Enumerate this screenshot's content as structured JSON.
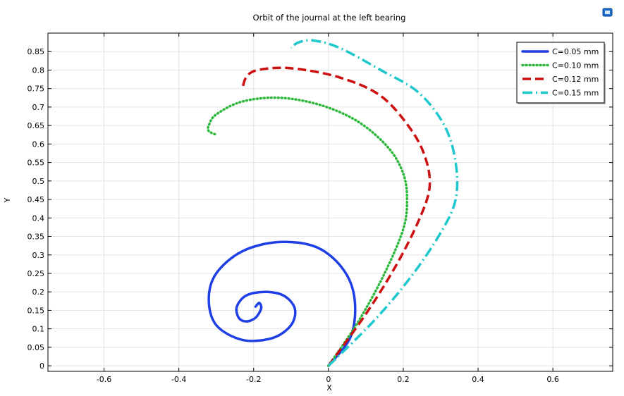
{
  "chart_data": {
    "type": "line",
    "title": "Orbit of the journal at the left bearing",
    "xlabel": "X",
    "ylabel": "Y",
    "xlim": [
      -0.75,
      0.76
    ],
    "ylim": [
      -0.015,
      0.9
    ],
    "xticks": [
      -0.6,
      -0.4,
      -0.2,
      0,
      0.2,
      0.4,
      0.6
    ],
    "xtick_labels": [
      "-0.6",
      "-0.4",
      "-0.2",
      "0",
      "0.2",
      "0.4",
      "0.6"
    ],
    "yticks": [
      0,
      0.05,
      0.1,
      0.15,
      0.2,
      0.25,
      0.3,
      0.35,
      0.4,
      0.45,
      0.5,
      0.55,
      0.6,
      0.65,
      0.7,
      0.75,
      0.8,
      0.85
    ],
    "ytick_labels": [
      "0",
      "0.05",
      "0.1",
      "0.15",
      "0.2",
      "0.25",
      "0.3",
      "0.35",
      "0.4",
      "0.45",
      "0.5",
      "0.55",
      "0.6",
      "0.65",
      "0.7",
      "0.75",
      "0.8",
      "0.85"
    ],
    "grid": true,
    "legend_position": "top-right",
    "series": [
      {
        "name": "C=0.05 mm",
        "color": "#1f3fe6",
        "dash": "solid",
        "x": [
          0,
          0.06,
          0.07,
          0.04,
          -0.03,
          -0.13,
          -0.23,
          -0.3,
          -0.32,
          -0.3,
          -0.23,
          -0.15,
          -0.1,
          -0.09,
          -0.12,
          -0.17,
          -0.22,
          -0.245,
          -0.24,
          -0.22,
          -0.195,
          -0.18,
          -0.185,
          -0.195
        ],
        "y": [
          0,
          0.08,
          0.18,
          0.26,
          0.32,
          0.335,
          0.31,
          0.25,
          0.18,
          0.11,
          0.07,
          0.075,
          0.11,
          0.155,
          0.19,
          0.2,
          0.19,
          0.16,
          0.13,
          0.12,
          0.13,
          0.155,
          0.17,
          0.16
        ]
      },
      {
        "name": "C=0.10 mm",
        "color": "#2db83d",
        "dash": "dotted",
        "x": [
          0,
          0.08,
          0.15,
          0.2,
          0.21,
          0.2,
          0.16,
          0.08,
          -0.02,
          -0.13,
          -0.23,
          -0.3,
          -0.32,
          -0.32,
          -0.3
        ],
        "y": [
          0,
          0.12,
          0.25,
          0.37,
          0.45,
          0.52,
          0.59,
          0.66,
          0.705,
          0.725,
          0.715,
          0.68,
          0.65,
          0.635,
          0.625
        ]
      },
      {
        "name": "C=0.12 mm",
        "color": "#cc1010",
        "dash": "dashed",
        "x": [
          0,
          0.1,
          0.18,
          0.24,
          0.27,
          0.26,
          0.22,
          0.14,
          0.03,
          -0.1,
          -0.19,
          -0.22,
          -0.23
        ],
        "y": [
          0,
          0.14,
          0.27,
          0.39,
          0.48,
          0.56,
          0.64,
          0.73,
          0.78,
          0.805,
          0.8,
          0.78,
          0.75
        ]
      },
      {
        "name": "C=0.15 mm",
        "color": "#1fc8cc",
        "dash": "dashdot",
        "x": [
          0,
          0.12,
          0.22,
          0.3,
          0.34,
          0.34,
          0.31,
          0.24,
          0.14,
          0.03,
          -0.04,
          -0.08,
          -0.1
        ],
        "y": [
          0,
          0.12,
          0.24,
          0.36,
          0.45,
          0.55,
          0.65,
          0.74,
          0.8,
          0.86,
          0.88,
          0.875,
          0.86
        ]
      }
    ]
  },
  "toolbar": {
    "export_icon": "export-image-icon"
  }
}
